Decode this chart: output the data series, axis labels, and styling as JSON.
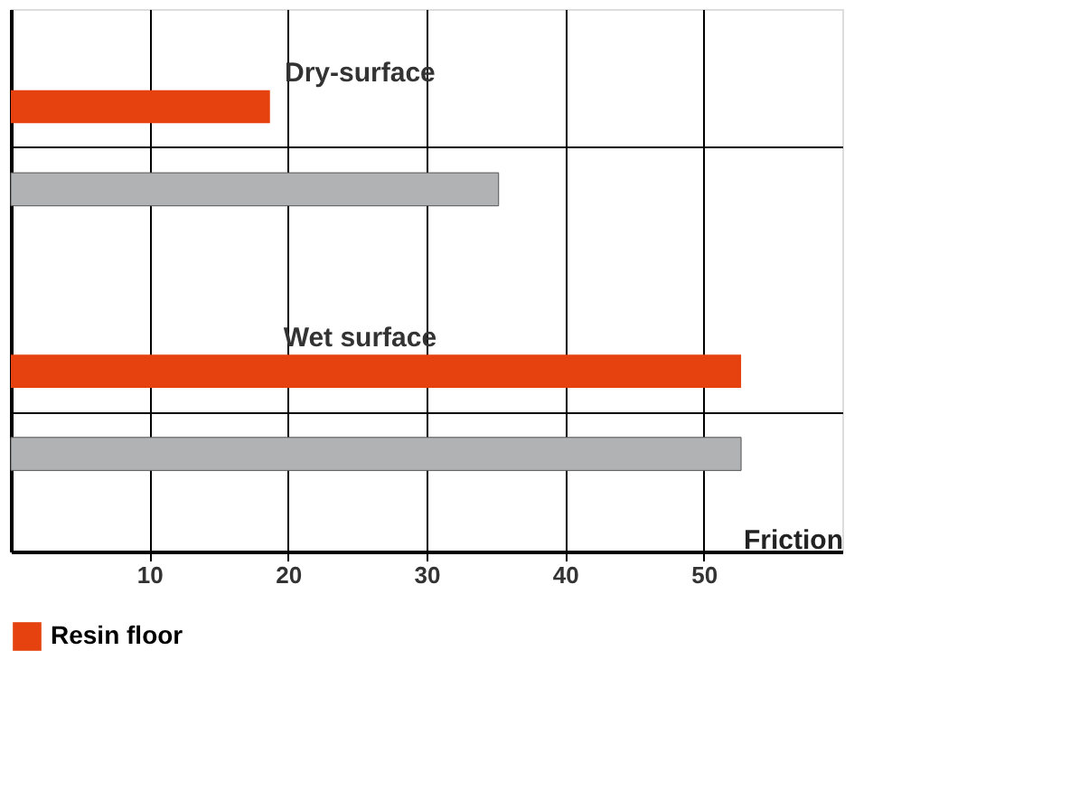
{
  "chart_data": {
    "type": "bar",
    "orientation": "horizontal",
    "xlabel": "Friction",
    "categories": [
      "Dry-surface",
      "Wet surface"
    ],
    "series": [
      {
        "name": "Resin floor",
        "color": "#e5420f",
        "values": [
          18.7,
          52.7
        ]
      },
      {
        "color": "#b0b2b4",
        "values": [
          35.2,
          52.7
        ]
      }
    ],
    "xlim": [
      0,
      60
    ],
    "xticks": [
      10,
      20,
      30,
      40,
      50
    ],
    "grid": true,
    "legend": "bottom"
  }
}
